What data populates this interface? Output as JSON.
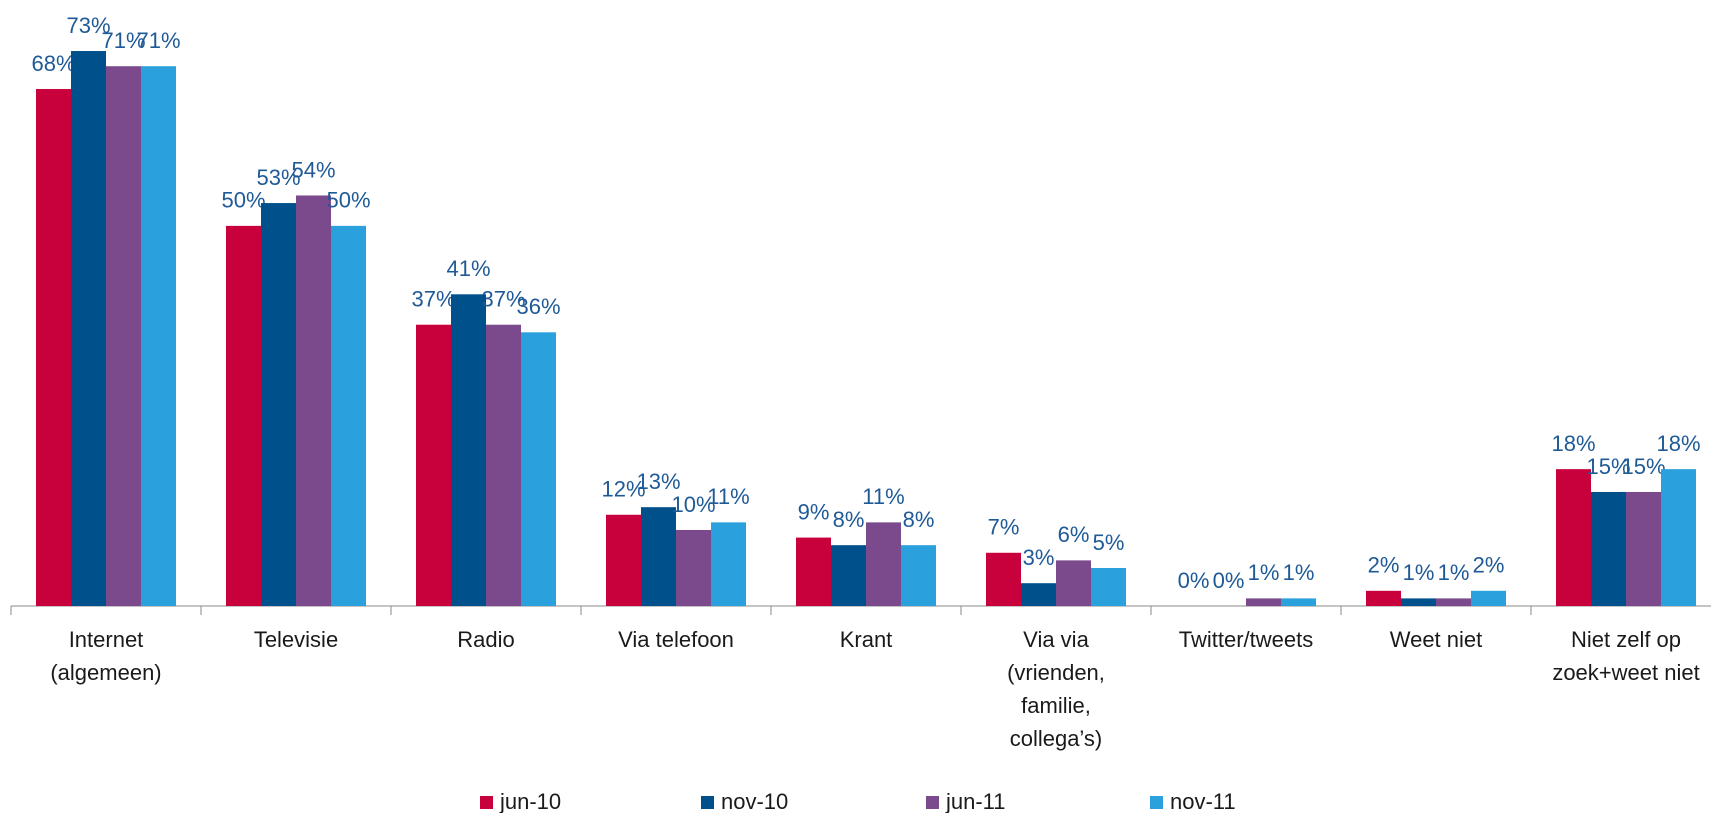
{
  "chart_data": {
    "type": "bar",
    "categories": [
      "Internet\n(algemeen)",
      "Televisie",
      "Radio",
      "Via telefoon",
      "Krant",
      "Via via\n(vrienden,\nfamilie,\ncollega’s)",
      "Twitter/tweets",
      "Weet niet",
      "Niet zelf op\nzoek+weet niet"
    ],
    "series": [
      {
        "name": "jun-10",
        "color": "#c8003c",
        "values": [
          68,
          50,
          37,
          12,
          9,
          7,
          0,
          2,
          18
        ],
        "value_labels": [
          "68%",
          "50%",
          "37%",
          "12%",
          "9%",
          "7%",
          "0%",
          "2%",
          "18%"
        ]
      },
      {
        "name": "nov-10",
        "color": "#00508c",
        "values": [
          73,
          53,
          41,
          13,
          8,
          3,
          0,
          1,
          15
        ],
        "value_labels": [
          "73%",
          "53%",
          "41%",
          "13%",
          "8%",
          "3%",
          "0%",
          "1%",
          "15%"
        ]
      },
      {
        "name": "jun-11",
        "color": "#7a4a8c",
        "values": [
          71,
          54,
          37,
          10,
          11,
          6,
          1,
          1,
          15
        ],
        "value_labels": [
          "71%",
          "54%",
          "37%",
          "10%",
          "11%",
          "6%",
          "1%",
          "1%",
          "15%"
        ]
      },
      {
        "name": "nov-11",
        "color": "#2aa0dc",
        "values": [
          71,
          50,
          36,
          11,
          8,
          5,
          1,
          2,
          18
        ],
        "value_labels": [
          "71%",
          "50%",
          "36%",
          "11%",
          "8%",
          "5%",
          "1%",
          "2%",
          "18%"
        ]
      }
    ],
    "ylim": [
      0,
      78
    ],
    "legend": "bottom"
  }
}
